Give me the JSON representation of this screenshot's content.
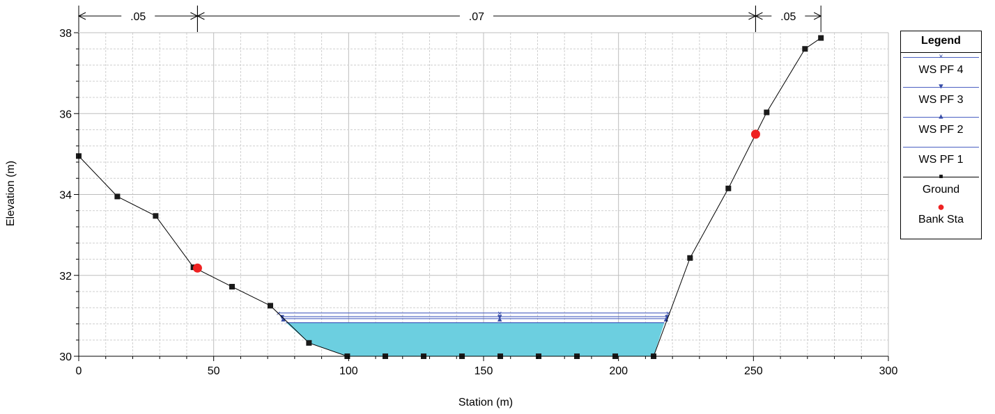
{
  "chart_data": {
    "type": "line",
    "xlabel": "Station (m)",
    "ylabel": "Elevation (m)",
    "xlim": [
      0,
      300
    ],
    "ylim": [
      30,
      38
    ],
    "x_ticks": [
      0,
      50,
      100,
      150,
      200,
      250,
      300
    ],
    "y_ticks": [
      30,
      32,
      34,
      36,
      38
    ],
    "grid": true,
    "legend_position": "right",
    "legend_title": "Legend",
    "ground": {
      "name": "Ground",
      "x": [
        0,
        14.3,
        28.5,
        42.5,
        56.8,
        71,
        85.3,
        99.5,
        113.6,
        127.8,
        142,
        156.2,
        170.4,
        184.6,
        198.8,
        213,
        226.5,
        240.7,
        254.9,
        269.1,
        275
      ],
      "y": [
        34.95,
        33.95,
        33.47,
        32.2,
        31.72,
        31.25,
        30.33,
        30,
        30,
        30,
        30,
        30,
        30,
        30,
        30,
        30,
        32.43,
        34.15,
        36.03,
        37.6,
        37.87
      ]
    },
    "bank_stations": {
      "name": "Bank Sta",
      "x": [
        44,
        250.8
      ],
      "y": [
        32.18,
        35.49
      ]
    },
    "water_surfaces": [
      {
        "name": "WS PF 4",
        "elevation": 31.07,
        "left_x": 74,
        "right_x": 218.4,
        "mid_x": 156,
        "marker": "×"
      },
      {
        "name": "WS PF 3",
        "elevation": 30.98,
        "left_x": 75.3,
        "right_x": 218,
        "mid_x": 156,
        "marker": "▼"
      },
      {
        "name": "WS PF 2",
        "elevation": 30.93,
        "left_x": 75.8,
        "right_x": 217.6,
        "mid_x": 156,
        "marker": "▲"
      },
      {
        "name": "WS PF 1",
        "elevation": 30.83,
        "left_x": 76.8,
        "right_x": 217,
        "mid_x": 156,
        "marker": ""
      }
    ],
    "mannings_n": [
      {
        "label": ".05",
        "from": 0,
        "to": 44
      },
      {
        "label": ".07",
        "from": 44,
        "to": 250.8
      },
      {
        "label": ".05",
        "from": 250.8,
        "to": 275
      }
    ],
    "colors": {
      "ground": "#000000",
      "ws_line": "#4a5fc1",
      "ws_marker": "#3a4fa8",
      "water_fill": "#6ccfe0",
      "bank": "#ee2222",
      "grid": "#c8c8c8"
    }
  },
  "legend": {
    "title": "Legend",
    "entries": [
      {
        "label": "WS PF 4",
        "marker": "×"
      },
      {
        "label": "WS PF 3",
        "marker": "▼"
      },
      {
        "label": "WS PF 2",
        "marker": "▲"
      },
      {
        "label": "WS PF 1",
        "marker": ""
      },
      {
        "label": "Ground",
        "marker": "■"
      },
      {
        "label": "Bank Sta",
        "marker": "●"
      }
    ]
  }
}
